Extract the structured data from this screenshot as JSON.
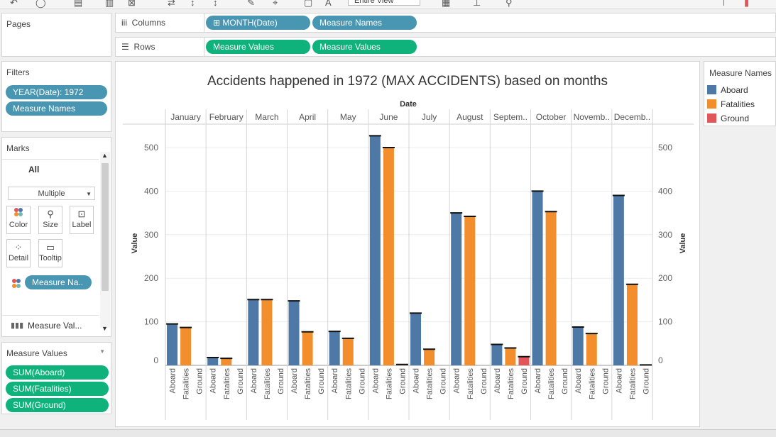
{
  "toolbar": {
    "view_select": "Entire View"
  },
  "pages": {
    "title": "Pages"
  },
  "filters": {
    "title": "Filters",
    "items": [
      "YEAR(Date): 1972",
      "Measure Names"
    ]
  },
  "marks": {
    "title": "Marks",
    "all_label": "All",
    "mark_type": "Multiple",
    "buttons": [
      "Color",
      "Size",
      "Label",
      "Detail",
      "Tooltip"
    ],
    "color_pill": "Measure Na..",
    "measure_values_row": "Measure Val..."
  },
  "measure_values": {
    "title": "Measure Values",
    "items": [
      "SUM(Aboard)",
      "SUM(Fatalities)",
      "SUM(Ground)"
    ]
  },
  "shelves": {
    "columns_label": "Columns",
    "columns": [
      "MONTH(Date)",
      "Measure Names"
    ],
    "rows_label": "Rows",
    "rows": [
      "Measure Values",
      "Measure Values"
    ]
  },
  "legend": {
    "title": "Measure Names",
    "items": [
      {
        "name": "Aboard",
        "color": "#4e79a7"
      },
      {
        "name": "Fatalities",
        "color": "#f28e2b"
      },
      {
        "name": "Ground",
        "color": "#e15759"
      }
    ]
  },
  "chart_data": {
    "type": "bar",
    "title": "Accidents happened in 1972 (MAX ACCIDENTS) based on months",
    "column_header": "Date",
    "ylabel": "Value",
    "ylim": [
      0,
      560
    ],
    "yticks": [
      0,
      100,
      200,
      300,
      400,
      500
    ],
    "categories": [
      "January",
      "February",
      "March",
      "April",
      "May",
      "June",
      "July",
      "August",
      "Septem..",
      "October",
      "Novemb..",
      "Decemb.."
    ],
    "subcategories": [
      "Aboard",
      "Fatalities",
      "Ground"
    ],
    "series": [
      {
        "name": "Aboard",
        "color": "#4e79a7",
        "values": [
          95,
          18,
          151,
          148,
          78,
          527,
          120,
          350,
          48,
          400,
          88,
          390
        ]
      },
      {
        "name": "Fatalities",
        "color": "#f28e2b",
        "values": [
          87,
          16,
          151,
          77,
          62,
          500,
          37,
          342,
          40,
          353,
          73,
          186
        ]
      },
      {
        "name": "Ground",
        "color": "#e15759",
        "values": [
          0,
          0,
          0,
          0,
          0,
          2,
          0,
          0,
          20,
          0,
          0,
          1
        ]
      }
    ]
  }
}
